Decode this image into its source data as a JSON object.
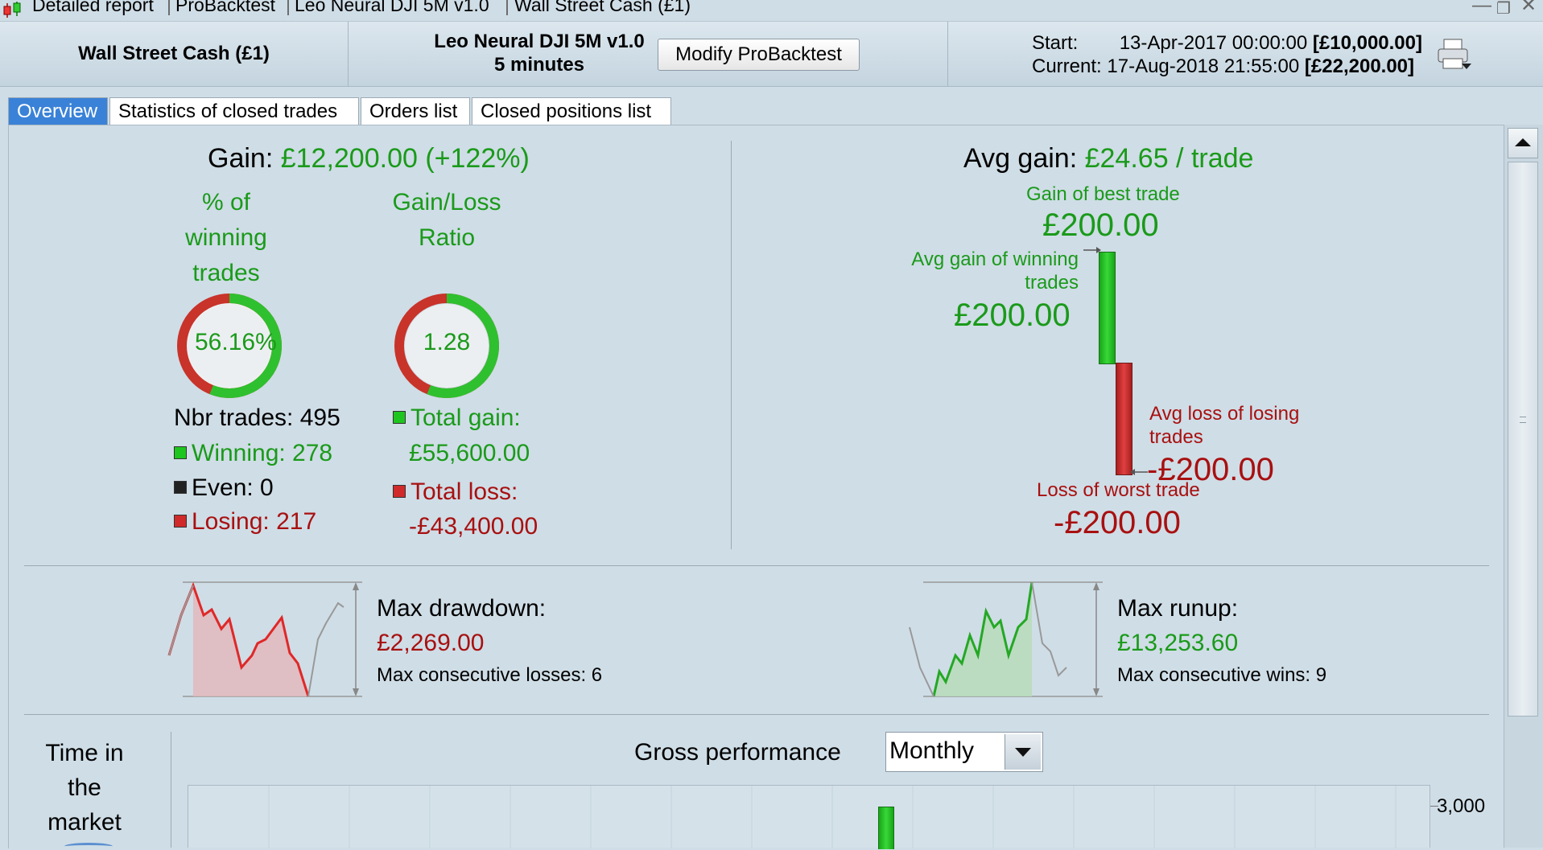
{
  "titlebar": {
    "parts": [
      "Detailed report",
      "ProBacktest",
      "Leo Neural DJI 5M v1.0",
      "Wall Street Cash (£1)"
    ]
  },
  "header": {
    "instrument": "Wall Street Cash (£1)",
    "system_name": "Leo Neural DJI 5M v1.0",
    "timeframe": "5 minutes",
    "modify_button": "Modify ProBacktest",
    "start_label": "Start:",
    "start_date": "13-Apr-2017 00:00:00",
    "start_capital": "[£10,000.00]",
    "current_label": "Current:",
    "current_date": "17-Aug-2018 21:55:00",
    "current_capital": "[£22,200.00]",
    "print_icon": "printer-icon"
  },
  "tabs": [
    {
      "label": "Overview",
      "active": true
    },
    {
      "label": "Statistics of closed trades",
      "active": false
    },
    {
      "label": "Orders list",
      "active": false
    },
    {
      "label": "Closed positions list",
      "active": false
    }
  ],
  "overview": {
    "gain_label": "Gain:",
    "gain_value": "£12,200.00",
    "gain_pct": "(+122%)",
    "pct_winning_title": "% of winning trades",
    "pct_winning_value": "56.16%",
    "pct_winning_fraction": 0.5616,
    "gl_ratio_title": "Gain/Loss Ratio",
    "gl_ratio_value": "1.28",
    "gl_ratio_fraction": 0.5616,
    "nbr_trades_label": "Nbr trades: 495",
    "winning_label": "Winning: 278",
    "even_label": "Even: 0",
    "losing_label": "Losing: 217",
    "total_gain_label": "Total gain:",
    "total_gain_value": "£55,600.00",
    "total_loss_label": "Total loss:",
    "total_loss_value": "-£43,400.00",
    "avg_gain_label": "Avg gain:",
    "avg_gain_value": "£24.65 / trade",
    "best_trade_label": "Gain of best trade",
    "best_trade_value": "£200.00",
    "avg_win_label": "Avg gain of winning trades",
    "avg_win_value": "£200.00",
    "avg_loss_label": "Avg loss of losing trades",
    "avg_loss_value": "-£200.00",
    "worst_trade_label": "Loss of worst trade",
    "worst_trade_value": "-£200.00",
    "max_drawdown_label": "Max drawdown:",
    "max_drawdown_value": "£2,269.00",
    "max_consec_losses": "Max consecutive losses: 6",
    "max_runup_label": "Max runup:",
    "max_runup_value": "£13,253.60",
    "max_consec_wins": "Max consecutive wins: 9",
    "time_in_market_label": "Time in the market",
    "gross_perf_label": "Gross performance",
    "gross_perf_period": "Monthly",
    "gross_axis_tick": "3,000"
  },
  "colors": {
    "green": "#1a9a1a",
    "red": "#a81010",
    "accent_tab": "#3a82d8"
  }
}
